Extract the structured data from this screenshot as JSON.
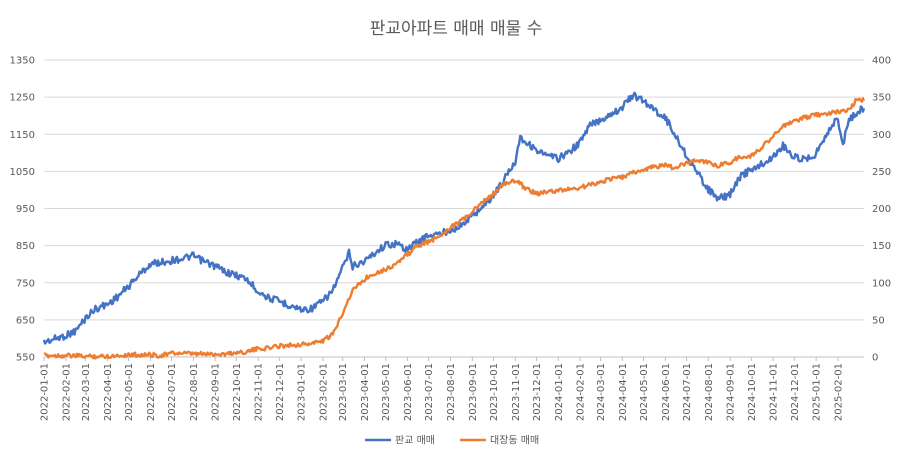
{
  "chart_data": {
    "type": "line",
    "title": "판교아파트 매매 매물 수",
    "xlabel": "",
    "ylabel": "",
    "y_left": {
      "range": [
        550,
        1350
      ],
      "ticks": [
        "550",
        "650",
        "750",
        "850",
        "950",
        "1050",
        "1150",
        "1250",
        "1350"
      ]
    },
    "y_right": {
      "range": [
        0,
        400
      ],
      "ticks": [
        "0",
        "50",
        "100",
        "150",
        "200",
        "250",
        "300",
        "350",
        "400"
      ]
    },
    "x_range": [
      "2022-01-01",
      "2025-03-10"
    ],
    "x_ticks": [
      "2022-01-01",
      "2022-02-01",
      "2022-03-01",
      "2022-04-01",
      "2022-05-01",
      "2022-06-01",
      "2022-07-01",
      "2022-08-01",
      "2022-09-01",
      "2022-10-01",
      "2022-11-01",
      "2022-12-01",
      "2023-01-01",
      "2023-02-01",
      "2023-03-01",
      "2023-04-01",
      "2023-05-01",
      "2023-06-01",
      "2023-07-01",
      "2023-08-01",
      "2023-09-01",
      "2023-10-01",
      "2023-11-01",
      "2023-12-01",
      "2024-01-01",
      "2024-02-01",
      "2024-03-01",
      "2024-04-01",
      "2024-05-01",
      "2024-06-01",
      "2024-07-01",
      "2024-08-01",
      "2024-09-01",
      "2024-10-01",
      "2024-11-01",
      "2024-12-01",
      "2025-01-01",
      "2025-02-01"
    ],
    "grid": true,
    "legend_position": "bottom",
    "series": [
      {
        "name": "판교 매매",
        "axis": "left",
        "color": "#4472C4",
        "points": [
          [
            "2022-01-01",
            590
          ],
          [
            "2022-01-15",
            598
          ],
          [
            "2022-02-01",
            608
          ],
          [
            "2022-02-15",
            620
          ],
          [
            "2022-03-01",
            655
          ],
          [
            "2022-03-15",
            680
          ],
          [
            "2022-04-01",
            692
          ],
          [
            "2022-04-15",
            712
          ],
          [
            "2022-05-01",
            740
          ],
          [
            "2022-05-15",
            770
          ],
          [
            "2022-06-01",
            800
          ],
          [
            "2022-06-15",
            805
          ],
          [
            "2022-07-01",
            810
          ],
          [
            "2022-07-15",
            815
          ],
          [
            "2022-08-01",
            822
          ],
          [
            "2022-08-15",
            808
          ],
          [
            "2022-09-01",
            795
          ],
          [
            "2022-09-15",
            780
          ],
          [
            "2022-10-01",
            770
          ],
          [
            "2022-10-15",
            760
          ],
          [
            "2022-11-01",
            728
          ],
          [
            "2022-11-15",
            710
          ],
          [
            "2022-12-01",
            700
          ],
          [
            "2022-12-15",
            690
          ],
          [
            "2023-01-01",
            678
          ],
          [
            "2023-01-15",
            680
          ],
          [
            "2023-02-01",
            700
          ],
          [
            "2023-02-15",
            730
          ],
          [
            "2023-03-01",
            790
          ],
          [
            "2023-03-10",
            830
          ],
          [
            "2023-03-15",
            795
          ],
          [
            "2023-04-01",
            808
          ],
          [
            "2023-04-15",
            830
          ],
          [
            "2023-05-01",
            852
          ],
          [
            "2023-05-15",
            855
          ],
          [
            "2023-06-01",
            840
          ],
          [
            "2023-06-15",
            860
          ],
          [
            "2023-07-01",
            878
          ],
          [
            "2023-07-15",
            880
          ],
          [
            "2023-08-01",
            893
          ],
          [
            "2023-08-15",
            902
          ],
          [
            "2023-09-01",
            930
          ],
          [
            "2023-09-15",
            955
          ],
          [
            "2023-10-01",
            985
          ],
          [
            "2023-10-15",
            1025
          ],
          [
            "2023-11-01",
            1078
          ],
          [
            "2023-11-08",
            1145
          ],
          [
            "2023-11-15",
            1130
          ],
          [
            "2023-12-01",
            1108
          ],
          [
            "2023-12-15",
            1092
          ],
          [
            "2024-01-01",
            1085
          ],
          [
            "2024-01-15",
            1100
          ],
          [
            "2024-02-01",
            1128
          ],
          [
            "2024-02-15",
            1175
          ],
          [
            "2024-03-01",
            1188
          ],
          [
            "2024-03-15",
            1205
          ],
          [
            "2024-04-01",
            1222
          ],
          [
            "2024-04-15",
            1255
          ],
          [
            "2024-05-01",
            1240
          ],
          [
            "2024-05-15",
            1218
          ],
          [
            "2024-06-01",
            1195
          ],
          [
            "2024-06-15",
            1148
          ],
          [
            "2024-07-01",
            1092
          ],
          [
            "2024-07-15",
            1050
          ],
          [
            "2024-08-01",
            1002
          ],
          [
            "2024-08-15",
            975
          ],
          [
            "2024-09-01",
            988
          ],
          [
            "2024-09-15",
            1035
          ],
          [
            "2024-10-01",
            1055
          ],
          [
            "2024-10-15",
            1068
          ],
          [
            "2024-11-01",
            1088
          ],
          [
            "2024-11-15",
            1120
          ],
          [
            "2024-12-01",
            1088
          ],
          [
            "2024-12-15",
            1082
          ],
          [
            "2025-01-01",
            1098
          ],
          [
            "2025-01-15",
            1150
          ],
          [
            "2025-02-01",
            1195
          ],
          [
            "2025-02-08",
            1115
          ],
          [
            "2025-02-15",
            1182
          ],
          [
            "2025-03-01",
            1212
          ],
          [
            "2025-03-10",
            1220
          ]
        ]
      },
      {
        "name": "대장동 매매",
        "axis": "right",
        "color": "#ED7D31",
        "points": [
          [
            "2022-01-01",
            2
          ],
          [
            "2022-02-01",
            2
          ],
          [
            "2022-03-01",
            1
          ],
          [
            "2022-04-01",
            1
          ],
          [
            "2022-05-01",
            3
          ],
          [
            "2022-06-01",
            3
          ],
          [
            "2022-06-15",
            2
          ],
          [
            "2022-07-01",
            5
          ],
          [
            "2022-07-15",
            5
          ],
          [
            "2022-08-01",
            4
          ],
          [
            "2022-09-01",
            4
          ],
          [
            "2022-09-15",
            4
          ],
          [
            "2022-10-01",
            6
          ],
          [
            "2022-10-15",
            7
          ],
          [
            "2022-11-01",
            11
          ],
          [
            "2022-11-15",
            12
          ],
          [
            "2022-12-01",
            15
          ],
          [
            "2022-12-15",
            16
          ],
          [
            "2023-01-01",
            17
          ],
          [
            "2023-01-15",
            18
          ],
          [
            "2023-02-01",
            22
          ],
          [
            "2023-02-15",
            30
          ],
          [
            "2023-03-01",
            60
          ],
          [
            "2023-03-15",
            90
          ],
          [
            "2023-04-01",
            105
          ],
          [
            "2023-04-15",
            113
          ],
          [
            "2023-05-01",
            118
          ],
          [
            "2023-05-15",
            125
          ],
          [
            "2023-06-01",
            138
          ],
          [
            "2023-06-15",
            150
          ],
          [
            "2023-07-01",
            155
          ],
          [
            "2023-07-15",
            162
          ],
          [
            "2023-08-01",
            175
          ],
          [
            "2023-08-15",
            182
          ],
          [
            "2023-09-01",
            195
          ],
          [
            "2023-09-15",
            208
          ],
          [
            "2023-10-01",
            220
          ],
          [
            "2023-10-15",
            232
          ],
          [
            "2023-11-01",
            238
          ],
          [
            "2023-11-15",
            228
          ],
          [
            "2023-12-01",
            220
          ],
          [
            "2023-12-15",
            222
          ],
          [
            "2024-01-01",
            224
          ],
          [
            "2024-01-15",
            226
          ],
          [
            "2024-02-01",
            228
          ],
          [
            "2024-02-15",
            232
          ],
          [
            "2024-03-01",
            236
          ],
          [
            "2024-03-15",
            240
          ],
          [
            "2024-04-01",
            242
          ],
          [
            "2024-04-15",
            248
          ],
          [
            "2024-05-01",
            252
          ],
          [
            "2024-05-15",
            256
          ],
          [
            "2024-06-01",
            258
          ],
          [
            "2024-06-15",
            254
          ],
          [
            "2024-07-01",
            262
          ],
          [
            "2024-07-15",
            265
          ],
          [
            "2024-08-01",
            262
          ],
          [
            "2024-08-15",
            258
          ],
          [
            "2024-09-01",
            262
          ],
          [
            "2024-09-15",
            270
          ],
          [
            "2024-10-01",
            270
          ],
          [
            "2024-10-15",
            282
          ],
          [
            "2024-11-01",
            298
          ],
          [
            "2024-11-15",
            310
          ],
          [
            "2024-12-01",
            318
          ],
          [
            "2024-12-15",
            322
          ],
          [
            "2025-01-01",
            326
          ],
          [
            "2025-01-15",
            328
          ],
          [
            "2025-02-01",
            330
          ],
          [
            "2025-02-15",
            332
          ],
          [
            "2025-03-01",
            348
          ],
          [
            "2025-03-10",
            345
          ]
        ]
      }
    ]
  }
}
